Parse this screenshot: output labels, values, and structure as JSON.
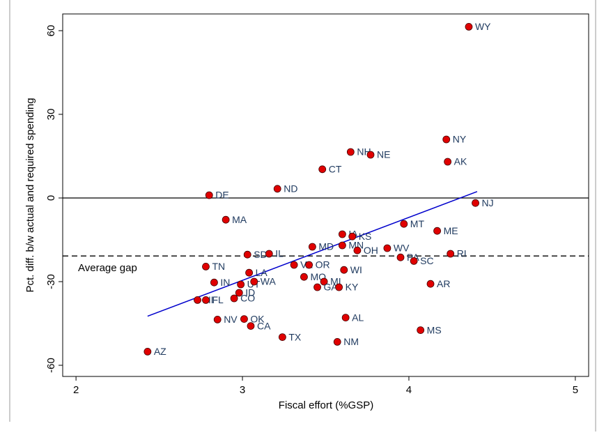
{
  "chart_data": {
    "type": "scatter",
    "x_label": "Fiscal effort (%GSP)",
    "y_label": "Pct. diff. b/w actual and required spending",
    "xlim": [
      1.92,
      5.08
    ],
    "ylim": [
      -64,
      66
    ],
    "xticks": [
      2,
      3,
      4,
      5
    ],
    "yticks": [
      60,
      30,
      0,
      -30,
      -60
    ],
    "point_color": "#e00000",
    "label_color": "#1f3a5f",
    "labels": [
      "WY",
      "NY",
      "AK",
      "NH",
      "NE",
      "CT",
      "ND",
      "DE",
      "NJ",
      "MA",
      "MT",
      "ME",
      "IA",
      "KS",
      "MN",
      "MD",
      "OH",
      "WV",
      "SD",
      "IL",
      "RI",
      "PA",
      "SC",
      "TN",
      "VA",
      "OR",
      "WI",
      "LA",
      "MO",
      "MI",
      "GA",
      "KY",
      "AR",
      "IN",
      "UT",
      "WA",
      "ID",
      "CO",
      "HI",
      "FL",
      "NV",
      "OK",
      "CA",
      "AL",
      "MS",
      "TX",
      "NM",
      "AZ"
    ],
    "x": [
      4.36,
      4.225,
      4.233,
      3.65,
      3.77,
      3.48,
      3.21,
      2.8,
      4.4,
      2.9,
      3.97,
      4.17,
      3.6,
      3.66,
      3.6,
      3.42,
      3.69,
      3.87,
      3.03,
      3.16,
      4.25,
      3.95,
      4.03,
      2.78,
      3.31,
      3.4,
      3.61,
      3.04,
      3.37,
      3.49,
      3.45,
      3.58,
      4.13,
      2.83,
      2.99,
      3.07,
      2.98,
      2.95,
      2.73,
      2.78,
      2.85,
      3.01,
      3.05,
      3.62,
      4.07,
      3.24,
      3.57,
      2.43
    ],
    "values": [
      61.4,
      21,
      13,
      16.5,
      15.5,
      10.3,
      3.3,
      1,
      -1.8,
      -7.8,
      -9.3,
      -11.8,
      -13,
      -13.8,
      -17,
      -17.5,
      -18.8,
      -18,
      -20.3,
      -20,
      -20,
      -21.3,
      -22.6,
      -24.6,
      -24,
      -24,
      -25.8,
      -26.8,
      -28.3,
      -30,
      -32,
      -32,
      -30.8,
      -30.3,
      -31,
      -30,
      -34,
      -36,
      -36.6,
      -36.6,
      -43.6,
      -43.4,
      -45.9,
      -42.9,
      -47.4,
      -49.9,
      -51.6,
      -55.1
    ],
    "zero_line": 0,
    "average_gap": {
      "value": -20.8,
      "label": "Average gap"
    },
    "fit_line": {
      "color": "#0000cc",
      "x": [
        2.43,
        4.41
      ],
      "y": [
        -42.4,
        2.3
      ]
    }
  }
}
